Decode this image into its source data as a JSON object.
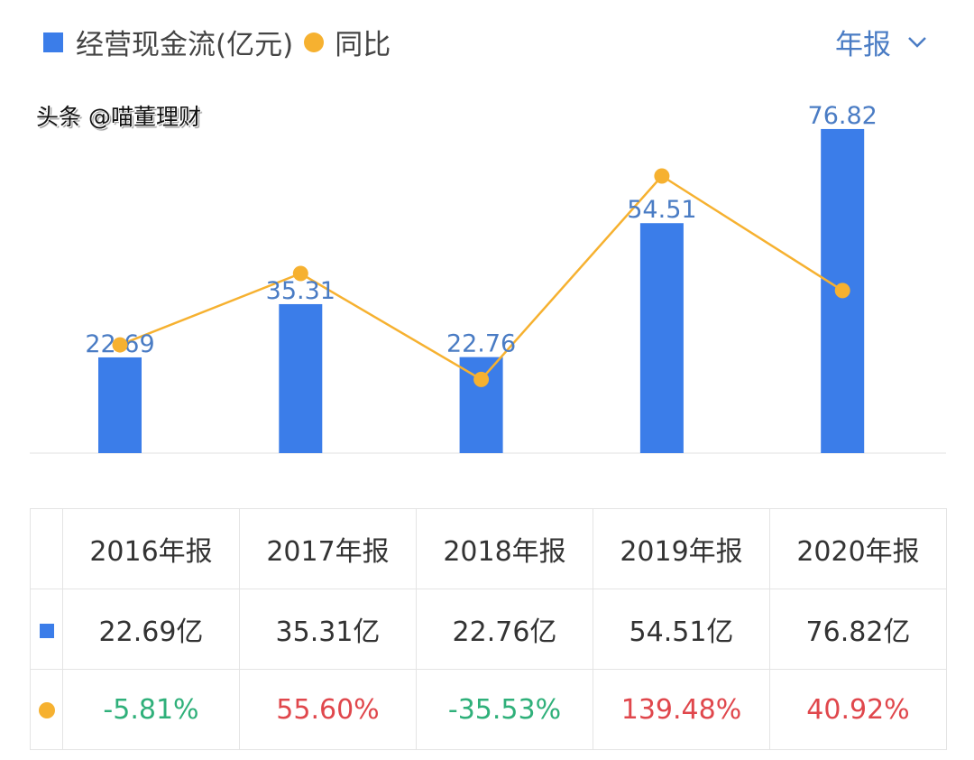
{
  "legend": {
    "bar_label": "经营现金流(亿元)",
    "line_label": "同比"
  },
  "period_selector": {
    "label": "年报",
    "icon": "chevron-down-icon"
  },
  "colors": {
    "bar": "#3b7de9",
    "line": "#f6b130",
    "positive": "#e0474c",
    "negative": "#2fb07a",
    "bar_label": "#4a7cc4"
  },
  "chart_data": {
    "type": "bar+line",
    "categories": [
      "2016年报",
      "2017年报",
      "2018年报",
      "2019年报",
      "2020年报"
    ],
    "series": [
      {
        "name": "经营现金流(亿元)",
        "type": "bar",
        "values": [
          22.69,
          35.31,
          22.76,
          54.51,
          76.82
        ],
        "labels": [
          "22.69",
          "35.31",
          "22.76",
          "54.51",
          "76.82"
        ]
      },
      {
        "name": "同比",
        "type": "line",
        "values": [
          -5.81,
          55.6,
          -35.53,
          139.48,
          40.92
        ]
      }
    ],
    "grid": false
  },
  "table": {
    "headers": [
      "2016年报",
      "2017年报",
      "2018年报",
      "2019年报",
      "2020年报"
    ],
    "values": [
      "22.69亿",
      "35.31亿",
      "22.76亿",
      "54.51亿",
      "76.82亿"
    ],
    "growth": [
      "-5.81%",
      "55.60%",
      "-35.53%",
      "139.48%",
      "40.92%"
    ]
  },
  "watermark": "头条 @喵董理财"
}
